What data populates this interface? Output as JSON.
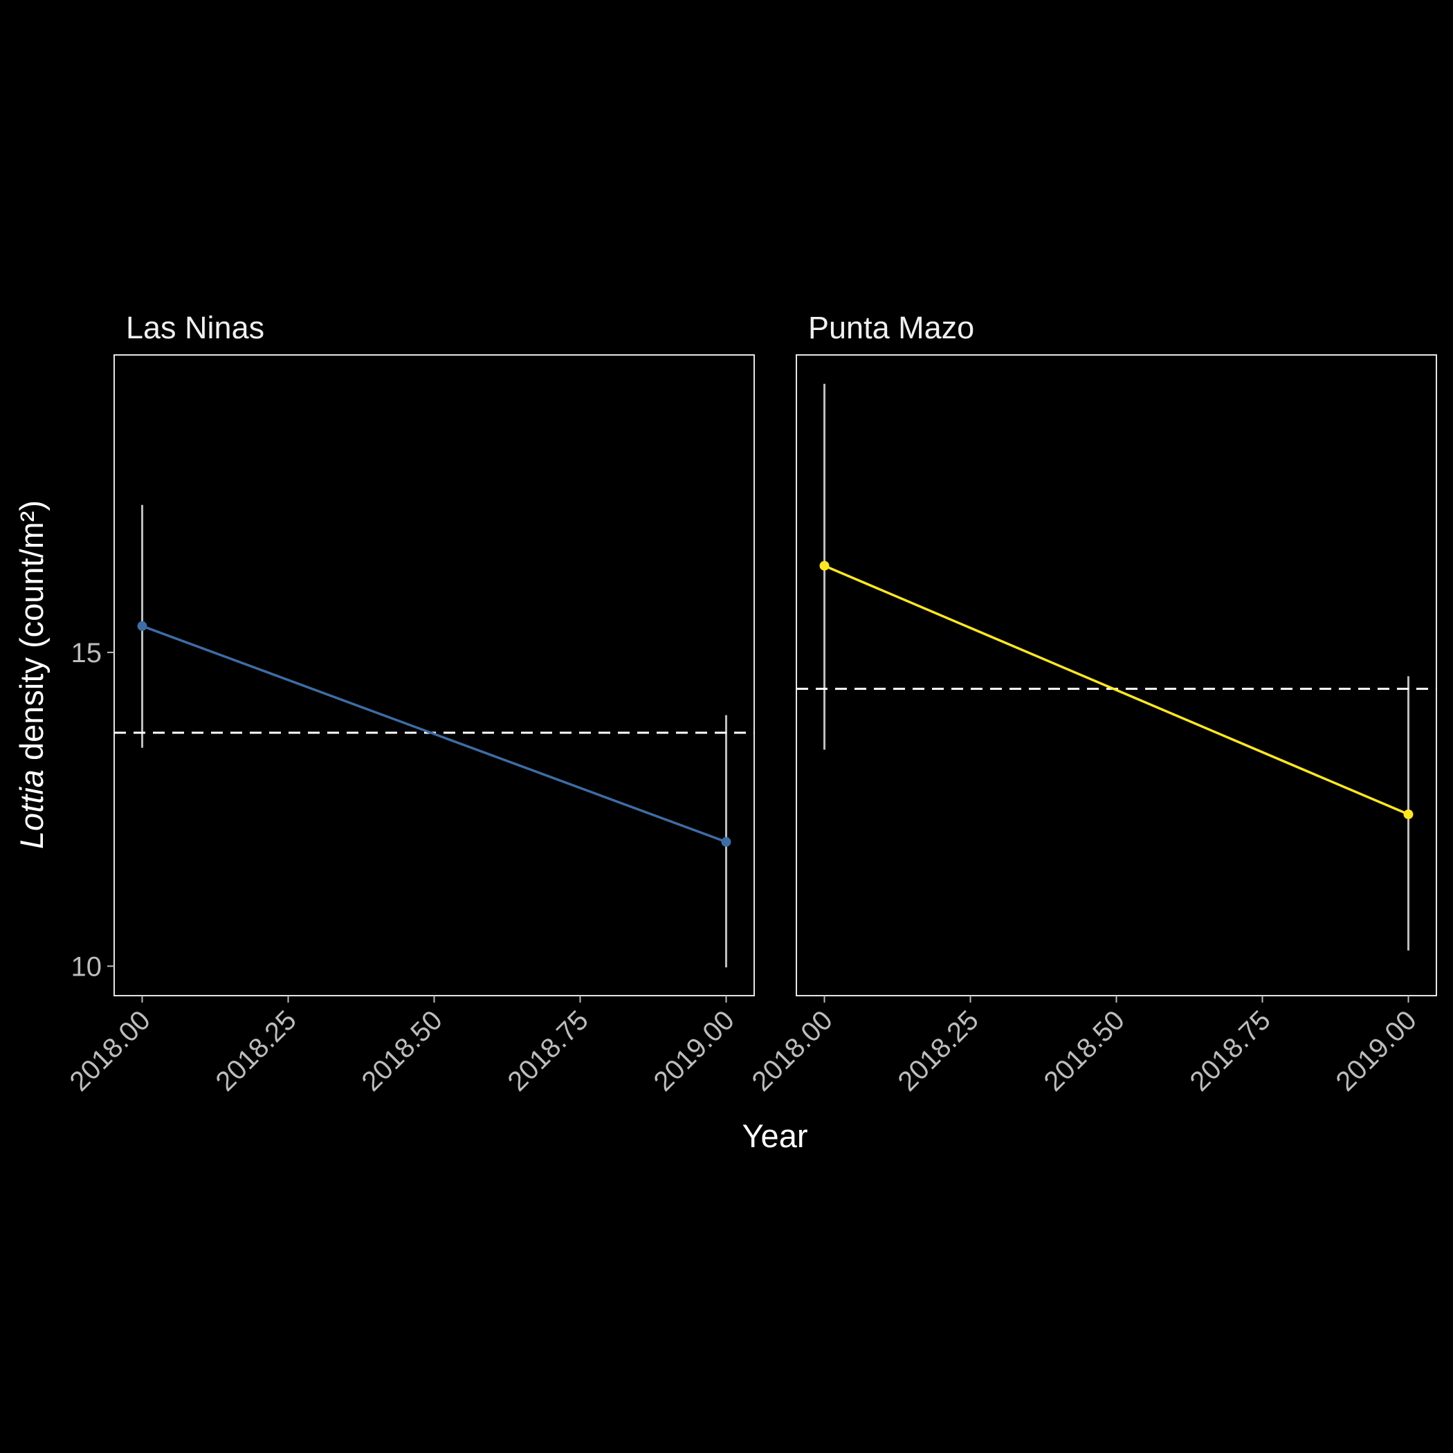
{
  "chart_data": {
    "type": "line",
    "xlabel": "Year",
    "ylabel_italic": "Lottia",
    "ylabel_rest": " density (count/m²)",
    "x_ticks": [
      "2018.00",
      "2018.25",
      "2018.50",
      "2018.75",
      "2019.00"
    ],
    "x_tick_values": [
      2018.0,
      2018.25,
      2018.5,
      2018.75,
      2019.0
    ],
    "y_ticks": [
      "10",
      "15"
    ],
    "y_tick_values": [
      10,
      15
    ],
    "xlim": [
      2017.952,
      2019.048
    ],
    "ylim": [
      9.53,
      19.74
    ],
    "grid": false,
    "legend": "none",
    "colors": {
      "background": "#000000",
      "panel_border": "#e6e6e6",
      "errorbar": "#bebebe",
      "dashed_line": "#ffffff"
    },
    "panels": [
      {
        "title": "Las Ninas",
        "color": "#3d6da4",
        "x": [
          2018.0,
          2019.0
        ],
        "y": [
          15.42,
          11.98
        ],
        "ymin": [
          13.48,
          9.98
        ],
        "ymax": [
          17.35,
          14.0
        ],
        "mean_line": 13.72
      },
      {
        "title": "Punta Mazo",
        "color": "#fde725",
        "x": [
          2018.0,
          2019.0
        ],
        "y": [
          16.38,
          12.42
        ],
        "ymin": [
          13.45,
          10.25
        ],
        "ymax": [
          19.28,
          14.62
        ],
        "mean_line": 14.42
      }
    ]
  }
}
